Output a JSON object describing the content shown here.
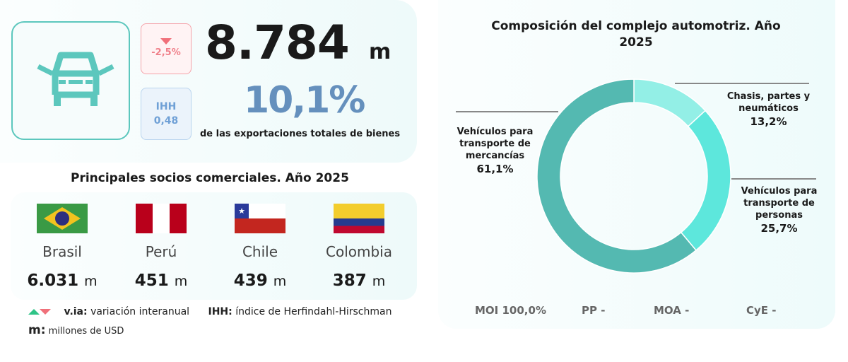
{
  "header": {
    "total_value": "8.784",
    "total_unit": "m",
    "variation": "-2,5%",
    "variation_direction": "down",
    "ihh_label": "IHH",
    "ihh_value": "0,48",
    "share_value": "10,1%",
    "share_label": "de las exportaciones totales de bienes",
    "icon": "car-icon"
  },
  "partners": {
    "title": "Principales socios comerciales. Año 2025",
    "items": [
      {
        "name": "Brasil",
        "value": "6.031",
        "unit": "m",
        "flag": "brazil-flag"
      },
      {
        "name": "Perú",
        "value": "451",
        "unit": "m",
        "flag": "peru-flag"
      },
      {
        "name": "Chile",
        "value": "439",
        "unit": "m",
        "flag": "chile-flag"
      },
      {
        "name": "Colombia",
        "value": "387",
        "unit": "m",
        "flag": "colombia-flag"
      }
    ]
  },
  "legend": {
    "via_key": "v.ia:",
    "via_text": "variación interanual",
    "ihh_key": "IHH:",
    "ihh_text": "índice de Herfindahl-Hirschman",
    "m_key": "m:",
    "m_text": "millones de USD"
  },
  "chart_data": {
    "type": "pie",
    "donut": true,
    "title": "Composición del complejo automotriz. Año 2025",
    "slices": [
      {
        "label": "Chasis, partes y neumáticos",
        "value": 13.2,
        "value_label": "13,2%",
        "color": "#93efe6"
      },
      {
        "label": "Vehículos para transporte de personas",
        "value": 25.7,
        "value_label": "25,7%",
        "color": "#5de7dc"
      },
      {
        "label": "Vehículos para transporte de mercancías",
        "value": 61.1,
        "value_label": "61,1%",
        "color": "#54b9b1"
      }
    ]
  },
  "footer_stats": [
    {
      "label": "MOI",
      "value": "100,0%"
    },
    {
      "label": "PP",
      "value": "-"
    },
    {
      "label": "MOA",
      "value": "-"
    },
    {
      "label": "CyE",
      "value": "-"
    }
  ],
  "colors": {
    "accent": "#5cc7bd",
    "down": "#f0707a",
    "up": "#2fc487",
    "share": "#6590bd"
  }
}
